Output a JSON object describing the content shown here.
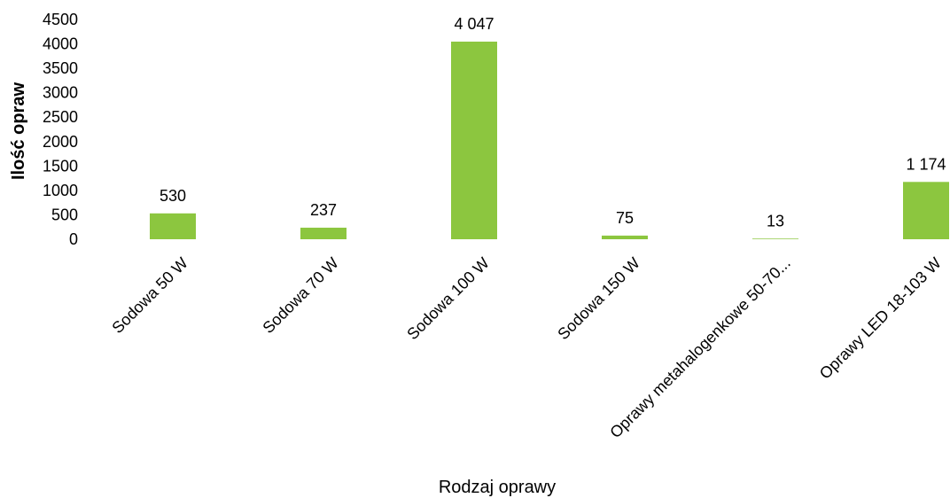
{
  "chart_data": {
    "type": "bar",
    "categories": [
      "Sodowa 50 W",
      "Sodowa 70 W",
      "Sodowa 100 W",
      "Sodowa 150 W",
      "Oprawy metahalogenkowe 50-70...",
      "Oprawy LED 18-103 W"
    ],
    "values": [
      530,
      237,
      4047,
      75,
      13,
      1174
    ],
    "value_labels": [
      "530",
      "237",
      "4 047",
      "75",
      "13",
      "1 174"
    ],
    "xlabel": "Rodzaj oprawy",
    "ylabel": "Ilość opraw",
    "ylim": [
      0,
      4500
    ],
    "yticks": [
      "0",
      "500",
      "1000",
      "1500",
      "2000",
      "2500",
      "3000",
      "3500",
      "4000",
      "4500"
    ],
    "grid": false,
    "legend": "none",
    "bar_color": "#8cc63f"
  }
}
